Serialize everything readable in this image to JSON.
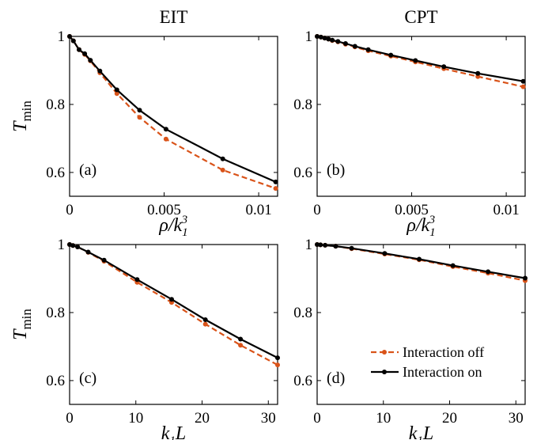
{
  "chart_data": [
    {
      "type": "line",
      "panel": "(a)",
      "title": "EIT",
      "ylabel": "T_min",
      "xlabel": "ρ/k₁³",
      "xlim": [
        0,
        0.011
      ],
      "ylim": [
        0.53,
        1.0
      ],
      "xticks": [
        "0",
        "0.005",
        "0.01"
      ],
      "yticks": [
        "0.6",
        "0.8",
        "1"
      ],
      "series": [
        {
          "name": "Interaction off",
          "x": [
            0,
            0.0002,
            0.0005,
            0.0008,
            0.0011,
            0.0016,
            0.0025,
            0.0037,
            0.0051,
            0.0081,
            0.0109
          ],
          "y": [
            1.0,
            0.987,
            0.961,
            0.947,
            0.928,
            0.893,
            0.832,
            0.762,
            0.698,
            0.607,
            0.553
          ]
        },
        {
          "name": "Interaction on",
          "x": [
            0,
            0.0002,
            0.0005,
            0.0008,
            0.0011,
            0.0016,
            0.0025,
            0.0037,
            0.0051,
            0.0081,
            0.0109
          ],
          "y": [
            1.0,
            0.987,
            0.961,
            0.949,
            0.93,
            0.898,
            0.843,
            0.783,
            0.727,
            0.64,
            0.572
          ]
        }
      ]
    },
    {
      "type": "line",
      "panel": "(b)",
      "title": "CPT",
      "xlabel": "ρ/k₁³",
      "xlim": [
        0,
        0.011
      ],
      "ylim": [
        0.53,
        1.0
      ],
      "xticks": [
        "0",
        "0.005",
        "0.01"
      ],
      "yticks": [
        "0.6",
        "0.8",
        "1"
      ],
      "series": [
        {
          "name": "Interaction off",
          "x": [
            0,
            0.0002,
            0.0004,
            0.0006,
            0.0008,
            0.0011,
            0.0015,
            0.002,
            0.0027,
            0.0039,
            0.0052,
            0.0067,
            0.0085,
            0.0109
          ],
          "y": [
            1.0,
            0.998,
            0.995,
            0.992,
            0.988,
            0.984,
            0.977,
            0.969,
            0.958,
            0.942,
            0.925,
            0.905,
            0.882,
            0.852
          ]
        },
        {
          "name": "Interaction on",
          "x": [
            0,
            0.0002,
            0.0004,
            0.0006,
            0.0008,
            0.0011,
            0.0015,
            0.002,
            0.0027,
            0.0039,
            0.0052,
            0.0067,
            0.0085,
            0.0109
          ],
          "y": [
            1.0,
            0.998,
            0.995,
            0.992,
            0.989,
            0.985,
            0.979,
            0.971,
            0.961,
            0.945,
            0.929,
            0.911,
            0.891,
            0.868
          ]
        }
      ]
    },
    {
      "type": "line",
      "panel": "(c)",
      "ylabel": "T_min",
      "xlabel": "k₁L",
      "xlim": [
        0,
        31.4
      ],
      "ylim": [
        0.53,
        1.0
      ],
      "xticks": [
        "0",
        "10",
        "20",
        "30"
      ],
      "yticks": [
        "0.6",
        "0.8",
        "1"
      ],
      "series": [
        {
          "name": "Interaction off",
          "x": [
            0,
            0.5,
            1.2,
            2.8,
            5.2,
            10.2,
            15.4,
            20.5,
            25.8,
            31.4
          ],
          "y": [
            1.0,
            0.997,
            0.993,
            0.977,
            0.951,
            0.889,
            0.83,
            0.766,
            0.704,
            0.646
          ]
        },
        {
          "name": "Interaction on",
          "x": [
            0,
            0.5,
            1.2,
            2.8,
            5.2,
            10.2,
            15.4,
            20.5,
            25.8,
            31.4
          ],
          "y": [
            1.0,
            0.997,
            0.993,
            0.978,
            0.954,
            0.897,
            0.839,
            0.779,
            0.722,
            0.667
          ]
        }
      ]
    },
    {
      "type": "line",
      "panel": "(d)",
      "xlabel": "k₁L",
      "xlim": [
        0,
        31.4
      ],
      "ylim": [
        0.53,
        1.0
      ],
      "xticks": [
        "0",
        "10",
        "20",
        "30"
      ],
      "yticks": [
        "0.6",
        "0.8",
        "1"
      ],
      "series": [
        {
          "name": "Interaction off",
          "x": [
            0,
            0.5,
            1.2,
            2.8,
            5.2,
            10.2,
            15.4,
            20.5,
            25.8,
            31.4
          ],
          "y": [
            1.0,
            0.999,
            0.998,
            0.995,
            0.988,
            0.972,
            0.955,
            0.935,
            0.916,
            0.894
          ]
        },
        {
          "name": "Interaction on",
          "x": [
            0,
            0.5,
            1.2,
            2.8,
            5.2,
            10.2,
            15.4,
            20.5,
            25.8,
            31.4
          ],
          "y": [
            1.0,
            0.999,
            0.998,
            0.995,
            0.989,
            0.974,
            0.957,
            0.938,
            0.92,
            0.901
          ]
        }
      ]
    }
  ],
  "legend": {
    "off_label": "Interaction off",
    "on_label": "Interaction on",
    "placement": "lower-right of panel (d)"
  },
  "colors": {
    "interaction_off": "#d95319",
    "interaction_on": "#000000"
  }
}
